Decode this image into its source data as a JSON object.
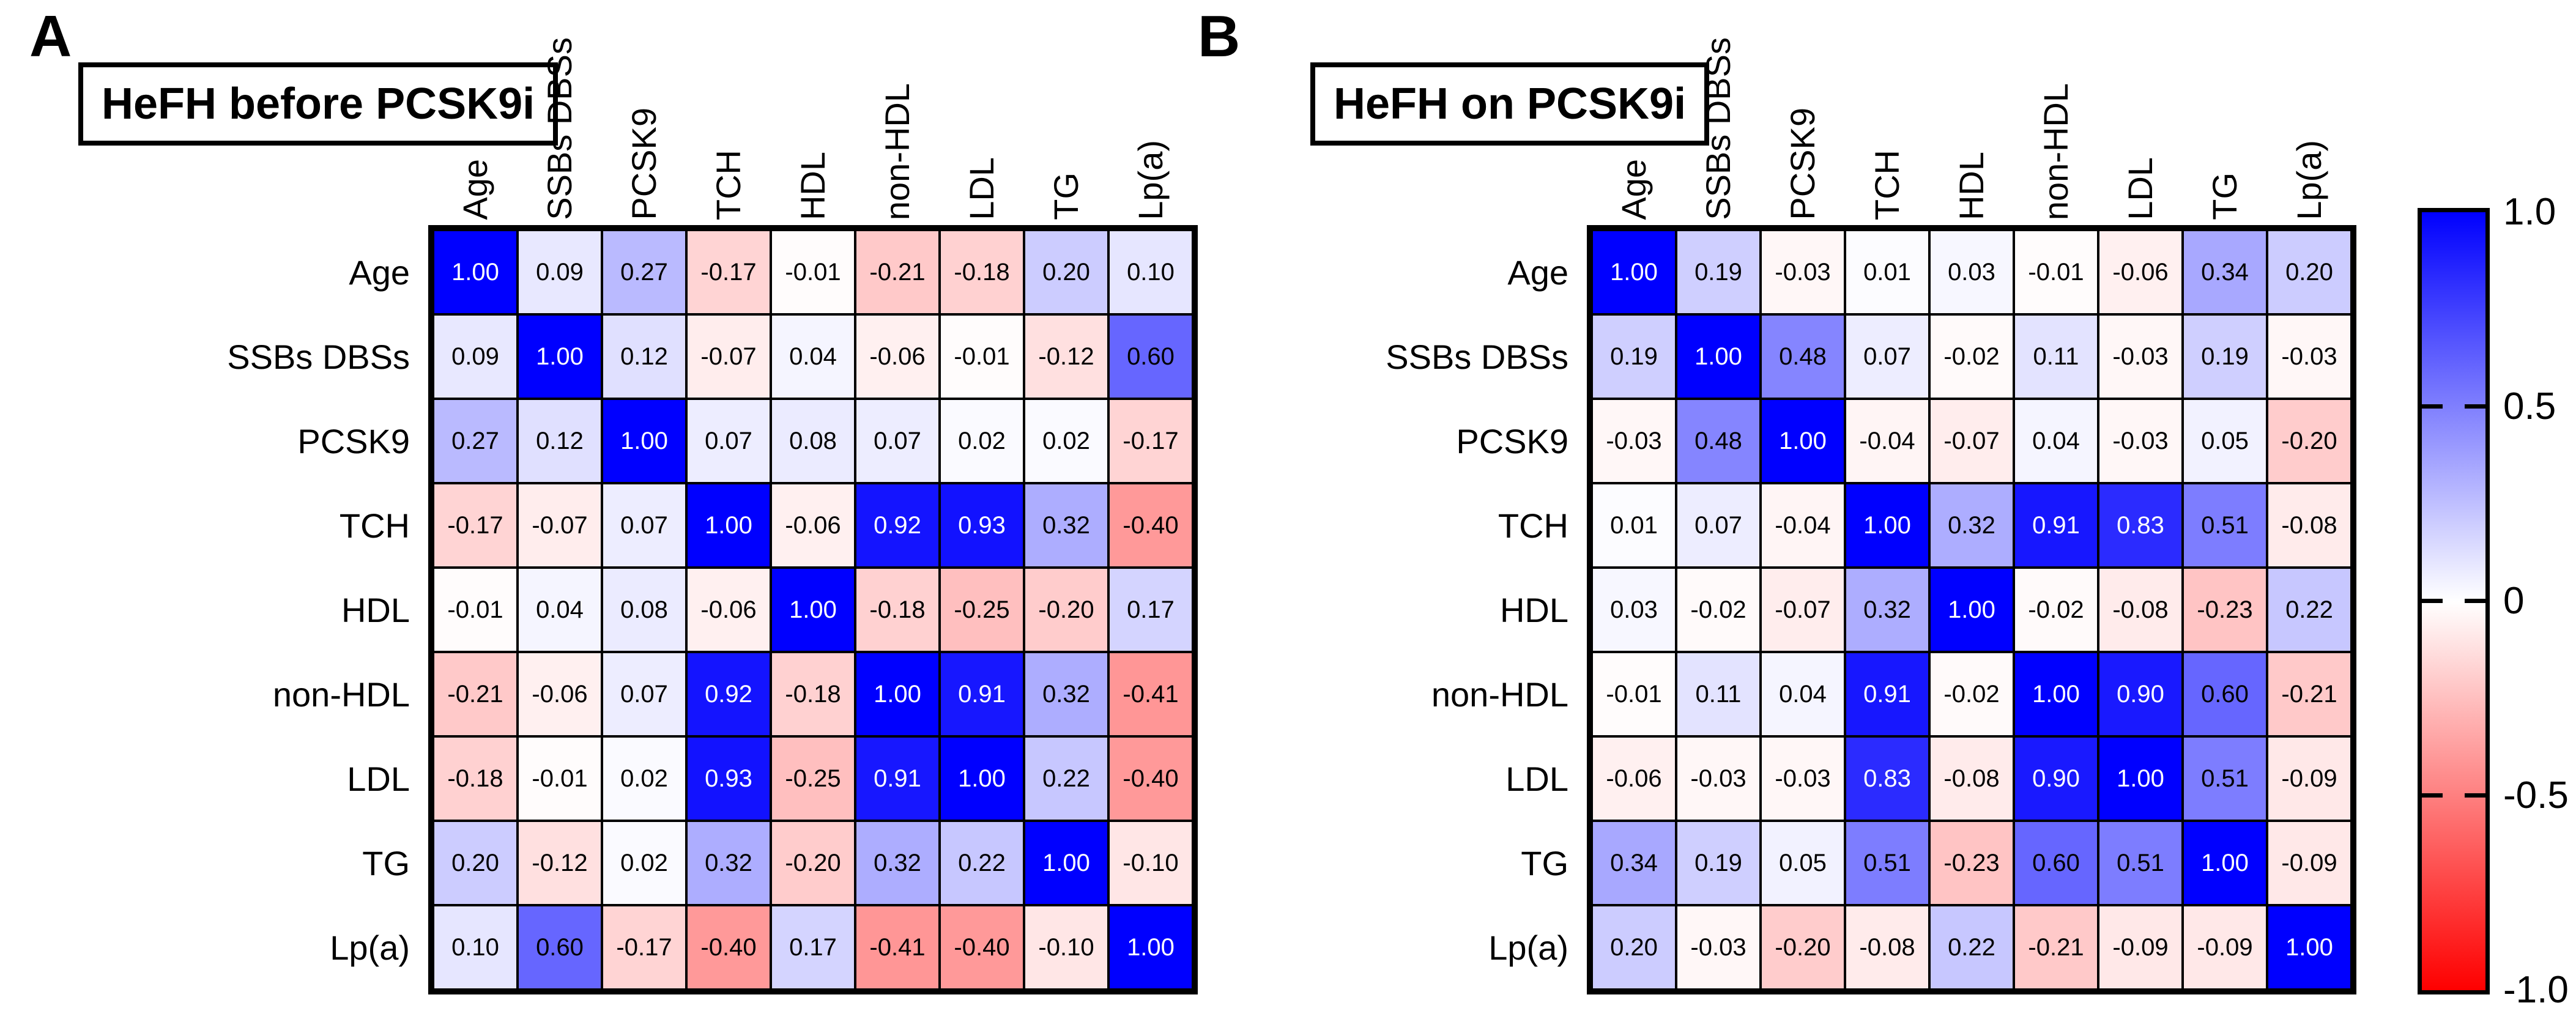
{
  "chart_data": [
    {
      "type": "heatmap",
      "panel": "A",
      "panel_letter": "A",
      "title": "HeFH before PCSK9i",
      "categories": [
        "Age",
        "SSBs DBSs",
        "PCSK9",
        "TCH",
        "HDL",
        "non-HDL",
        "LDL",
        "TG",
        "Lp(a)"
      ],
      "rows": [
        "Age",
        "SSBs DBSs",
        "PCSK9",
        "TCH",
        "HDL",
        "non-HDL",
        "LDL",
        "TG",
        "Lp(a)"
      ],
      "columns": [
        "Age",
        "SSBs DBSs",
        "PCSK9",
        "TCH",
        "HDL",
        "non-HDL",
        "LDL",
        "TG",
        "Lp(a)"
      ],
      "matrix": [
        [
          1.0,
          0.09,
          0.27,
          -0.17,
          -0.01,
          -0.21,
          -0.18,
          0.2,
          0.1
        ],
        [
          0.09,
          1.0,
          0.12,
          -0.07,
          0.04,
          -0.06,
          -0.01,
          -0.12,
          0.6
        ],
        [
          0.27,
          0.12,
          1.0,
          0.07,
          0.08,
          0.07,
          0.02,
          0.02,
          -0.17
        ],
        [
          -0.17,
          -0.07,
          0.07,
          1.0,
          -0.06,
          0.92,
          0.93,
          0.32,
          -0.4
        ],
        [
          -0.01,
          0.04,
          0.08,
          -0.06,
          1.0,
          -0.18,
          -0.25,
          -0.2,
          0.17
        ],
        [
          -0.21,
          -0.06,
          0.07,
          0.92,
          -0.18,
          1.0,
          0.91,
          0.32,
          -0.41
        ],
        [
          -0.18,
          -0.01,
          0.02,
          0.93,
          -0.25,
          0.91,
          1.0,
          0.22,
          -0.4
        ],
        [
          0.2,
          -0.12,
          0.02,
          0.32,
          -0.2,
          0.32,
          0.22,
          1.0,
          -0.1
        ],
        [
          0.1,
          0.6,
          -0.17,
          -0.4,
          0.17,
          -0.41,
          -0.4,
          -0.1,
          1.0
        ]
      ],
      "value_format": "0.00",
      "colorscale": {
        "min": -1.0,
        "mid": 0.0,
        "max": 1.0,
        "min_color": "#FE0000",
        "mid_color": "#FFFFFF",
        "max_color": "#0000FE"
      },
      "grid": true
    },
    {
      "type": "heatmap",
      "panel": "B",
      "panel_letter": "B",
      "title": "HeFH on PCSK9i",
      "categories": [
        "Age",
        "SSBs DBSs",
        "PCSK9",
        "TCH",
        "HDL",
        "non-HDL",
        "LDL",
        "TG",
        "Lp(a)"
      ],
      "rows": [
        "Age",
        "SSBs DBSs",
        "PCSK9",
        "TCH",
        "HDL",
        "non-HDL",
        "LDL",
        "TG",
        "Lp(a)"
      ],
      "columns": [
        "Age",
        "SSBs DBSs",
        "PCSK9",
        "TCH",
        "HDL",
        "non-HDL",
        "LDL",
        "TG",
        "Lp(a)"
      ],
      "matrix": [
        [
          1.0,
          0.19,
          -0.03,
          0.01,
          0.03,
          -0.01,
          -0.06,
          0.34,
          0.2
        ],
        [
          0.19,
          1.0,
          0.48,
          0.07,
          -0.02,
          0.11,
          -0.03,
          0.19,
          -0.03
        ],
        [
          -0.03,
          0.48,
          1.0,
          -0.04,
          -0.07,
          0.04,
          -0.03,
          0.05,
          -0.2
        ],
        [
          0.01,
          0.07,
          -0.04,
          1.0,
          0.32,
          0.91,
          0.83,
          0.51,
          -0.08
        ],
        [
          0.03,
          -0.02,
          -0.07,
          0.32,
          1.0,
          -0.02,
          -0.08,
          -0.23,
          0.22
        ],
        [
          -0.01,
          0.11,
          0.04,
          0.91,
          -0.02,
          1.0,
          0.9,
          0.6,
          -0.21
        ],
        [
          -0.06,
          -0.03,
          -0.03,
          0.83,
          -0.08,
          0.9,
          1.0,
          0.51,
          -0.09
        ],
        [
          0.34,
          0.19,
          0.05,
          0.51,
          -0.23,
          0.6,
          0.51,
          1.0,
          -0.09
        ],
        [
          0.2,
          -0.03,
          -0.2,
          -0.08,
          0.22,
          -0.21,
          -0.09,
          -0.09,
          1.0
        ]
      ],
      "value_format": "0.00",
      "colorscale": {
        "min": -1.0,
        "mid": 0.0,
        "max": 1.0,
        "min_color": "#FE0000",
        "mid_color": "#FFFFFF",
        "max_color": "#0000FE"
      },
      "grid": true
    }
  ],
  "colorbar": {
    "position": "right",
    "range": [
      -1.0,
      1.0
    ],
    "tick_labels": [
      "1.0",
      "0.5",
      "0",
      "-0.5",
      "-1.0"
    ],
    "top_color": "#0000FE",
    "mid_color": "#FFFFFF",
    "bottom_color": "#FE0000"
  }
}
